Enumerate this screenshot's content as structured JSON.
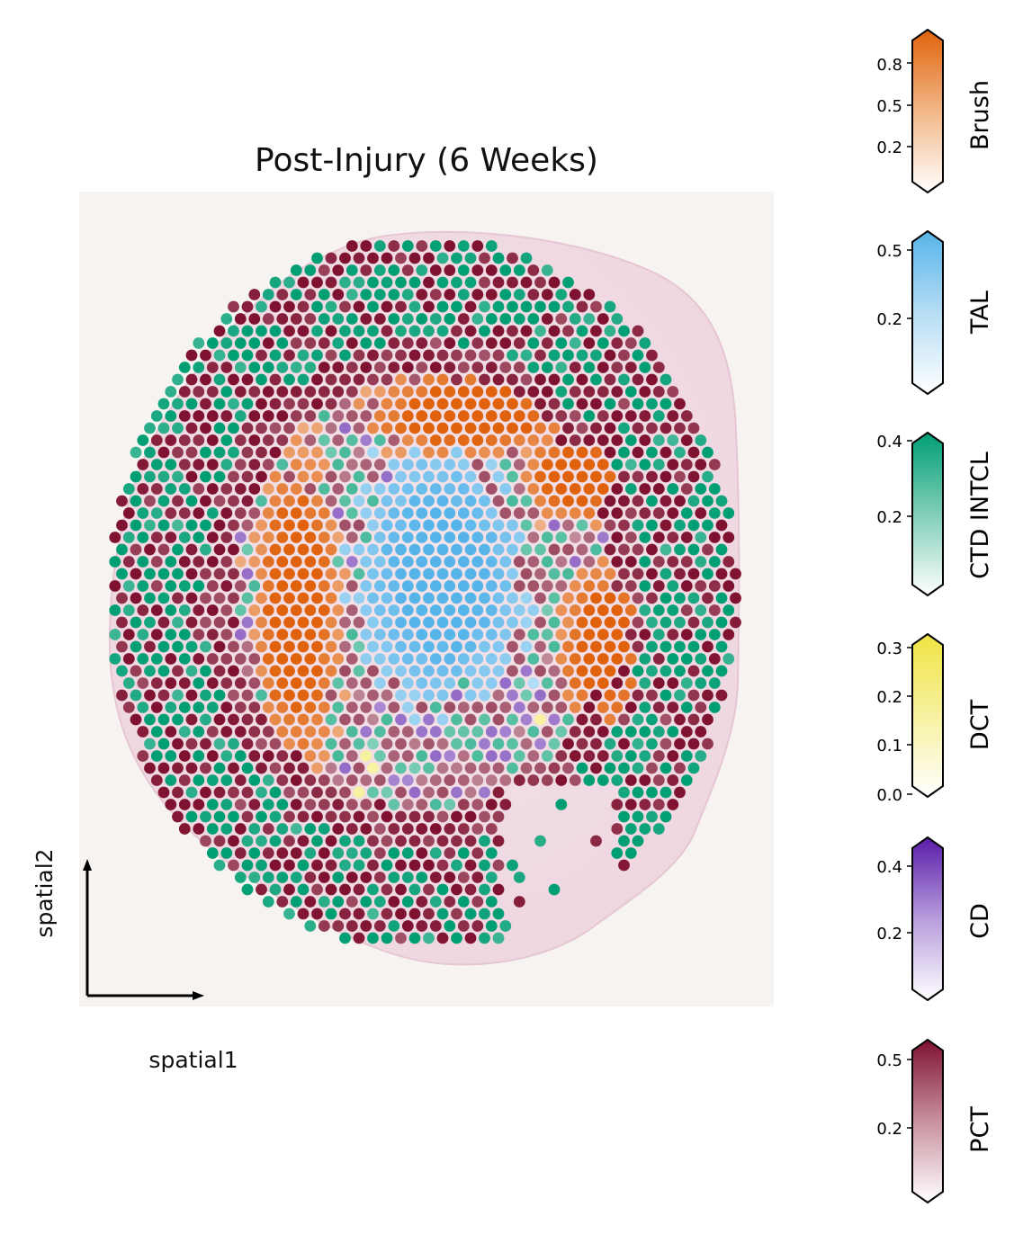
{
  "chart_data": {
    "type": "scatter",
    "title": "Post-Injury (6 Weeks)",
    "xlabel": "spatial1",
    "ylabel": "spatial2",
    "description_of_marks": "spatial transcriptomics spots colored by dominant cell type abundance",
    "colorbars": [
      {
        "label": "Brush",
        "color": "#E0620C",
        "ticks": [
          0.2,
          0.5,
          0.8
        ],
        "range": [
          0.0,
          1.0
        ]
      },
      {
        "label": "TAL",
        "color": "#56B4E9",
        "ticks": [
          0.2,
          0.5
        ],
        "range": [
          0.0,
          0.55
        ]
      },
      {
        "label": "CTD INTCL",
        "color": "#009E73",
        "ticks": [
          0.2,
          0.4
        ],
        "range": [
          0.0,
          0.4
        ]
      },
      {
        "label": "DCT",
        "color": "#F0E442",
        "ticks": [
          0.0,
          0.1,
          0.2,
          0.3
        ],
        "range": [
          0.0,
          0.31
        ]
      },
      {
        "label": "CD",
        "color": "#5A1BA8",
        "ticks": [
          0.2,
          0.4
        ],
        "range": [
          0.0,
          0.46
        ]
      },
      {
        "label": "PCT",
        "color": "#7F1230",
        "ticks": [
          0.2,
          0.5
        ],
        "range": [
          0.0,
          0.56
        ]
      }
    ]
  },
  "tick_labels": {
    "brush": [
      "0.8",
      "0.5",
      "0.2"
    ],
    "tal": [
      "0.5",
      "0.2"
    ],
    "ctd": [
      "0.4",
      "0.2"
    ],
    "dct": [
      "0.3",
      "0.2",
      "0.1",
      "0.0"
    ],
    "cd": [
      "0.4",
      "0.2"
    ],
    "pct": [
      "0.5",
      "0.2"
    ]
  }
}
